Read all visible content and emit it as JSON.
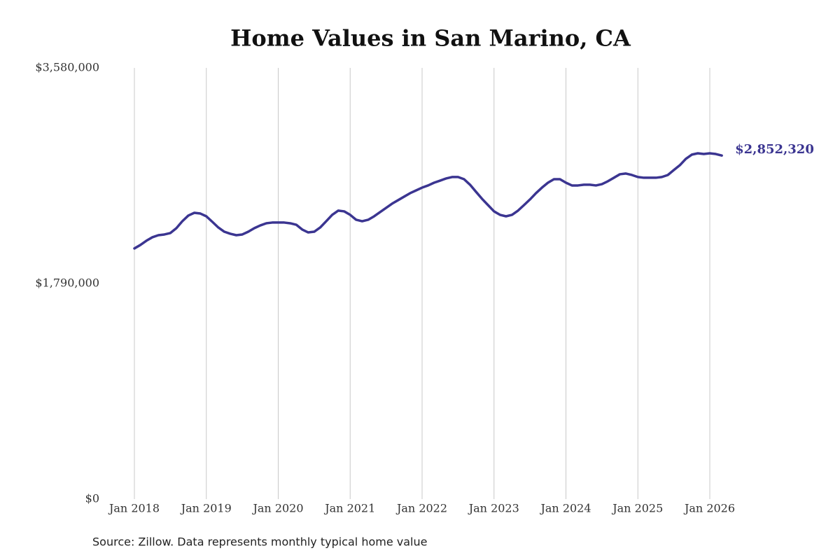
{
  "chart_data": {
    "type": "line",
    "title": "Home Values in San Marino, CA",
    "source": "Source: Zillow. Data represents monthly typical home value",
    "x": [
      "2018-01",
      "2018-02",
      "2018-03",
      "2018-04",
      "2018-05",
      "2018-06",
      "2018-07",
      "2018-08",
      "2018-09",
      "2018-10",
      "2018-11",
      "2018-12",
      "2019-01",
      "2019-02",
      "2019-03",
      "2019-04",
      "2019-05",
      "2019-06",
      "2019-07",
      "2019-08",
      "2019-09",
      "2019-10",
      "2019-11",
      "2019-12",
      "2020-01",
      "2020-02",
      "2020-03",
      "2020-04",
      "2020-05",
      "2020-06",
      "2020-07",
      "2020-08",
      "2020-09",
      "2020-10",
      "2020-11",
      "2020-12",
      "2021-01",
      "2021-02",
      "2021-03",
      "2021-04",
      "2021-05",
      "2021-06",
      "2021-07",
      "2021-08",
      "2021-09",
      "2021-10",
      "2021-11",
      "2021-12",
      "2022-01",
      "2022-02",
      "2022-03",
      "2022-04",
      "2022-05",
      "2022-06",
      "2022-07",
      "2022-08",
      "2022-09",
      "2022-10",
      "2022-11",
      "2022-12",
      "2023-01",
      "2023-02",
      "2023-03",
      "2023-04",
      "2023-05",
      "2023-06",
      "2023-07",
      "2023-08",
      "2023-09",
      "2023-10",
      "2023-11",
      "2023-12",
      "2024-01",
      "2024-02",
      "2024-03",
      "2024-04",
      "2024-05",
      "2024-06",
      "2024-07",
      "2024-08",
      "2024-09",
      "2024-10",
      "2024-11",
      "2024-12",
      "2025-01",
      "2025-02",
      "2025-03",
      "2025-04",
      "2025-05",
      "2025-06",
      "2025-07",
      "2025-08",
      "2025-09",
      "2025-10",
      "2025-11",
      "2025-12",
      "2026-01",
      "2026-02",
      "2026-03"
    ],
    "values": [
      2081000,
      2110000,
      2145000,
      2174000,
      2191000,
      2197000,
      2209000,
      2249000,
      2307000,
      2354000,
      2377000,
      2371000,
      2348000,
      2302000,
      2255000,
      2220000,
      2203000,
      2191000,
      2197000,
      2220000,
      2249000,
      2272000,
      2290000,
      2296000,
      2296000,
      2296000,
      2290000,
      2278000,
      2238000,
      2214000,
      2220000,
      2255000,
      2307000,
      2360000,
      2395000,
      2389000,
      2360000,
      2319000,
      2307000,
      2319000,
      2348000,
      2383000,
      2418000,
      2453000,
      2482000,
      2511000,
      2540000,
      2563000,
      2586000,
      2604000,
      2627000,
      2644000,
      2662000,
      2674000,
      2674000,
      2656000,
      2610000,
      2551000,
      2493000,
      2441000,
      2389000,
      2360000,
      2348000,
      2360000,
      2395000,
      2441000,
      2488000,
      2540000,
      2586000,
      2627000,
      2656000,
      2656000,
      2627000,
      2604000,
      2604000,
      2610000,
      2610000,
      2604000,
      2615000,
      2639000,
      2668000,
      2697000,
      2703000,
      2691000,
      2674000,
      2668000,
      2668000,
      2668000,
      2674000,
      2691000,
      2732000,
      2772000,
      2825000,
      2860000,
      2871000,
      2865000,
      2871000,
      2865000,
      2852320
    ],
    "value_labels": [
      null,
      null,
      null,
      null,
      null,
      null,
      null,
      null,
      null,
      null,
      null,
      null,
      null,
      null,
      null,
      null,
      null,
      null,
      null,
      null,
      null,
      null,
      null,
      null,
      null,
      null,
      null,
      null,
      null,
      null,
      null,
      null,
      null,
      null,
      null,
      null,
      null,
      null,
      null,
      null,
      null,
      null,
      null,
      null,
      null,
      null,
      null,
      null,
      null,
      null,
      null,
      null,
      null,
      null,
      null,
      null,
      null,
      null,
      null,
      null,
      null,
      null,
      null,
      null,
      null,
      null,
      null,
      null,
      null,
      null,
      null,
      null,
      null,
      null,
      null,
      null,
      null,
      null,
      null,
      null,
      null,
      null,
      null,
      null,
      null,
      null,
      null,
      null,
      null,
      null,
      null,
      null,
      null,
      null,
      null,
      null,
      null,
      null,
      "$2,852,320"
    ],
    "color": "#3b3591",
    "ylim": [
      0,
      3580000
    ],
    "yticks": [
      {
        "value": 0,
        "label": "$0"
      },
      {
        "value": 1790000,
        "label": "$1,790,000"
      },
      {
        "value": 3580000,
        "label": "$3,580,000"
      }
    ],
    "xticks": [
      {
        "value": "2018-01",
        "label": "Jan 2018"
      },
      {
        "value": "2019-01",
        "label": "Jan 2019"
      },
      {
        "value": "2020-01",
        "label": "Jan 2020"
      },
      {
        "value": "2021-01",
        "label": "Jan 2021"
      },
      {
        "value": "2022-01",
        "label": "Jan 2022"
      },
      {
        "value": "2023-01",
        "label": "Jan 2023"
      },
      {
        "value": "2024-01",
        "label": "Jan 2024"
      },
      {
        "value": "2025-01",
        "label": "Jan 2025"
      },
      {
        "value": "2026-01",
        "label": "Jan 2026"
      }
    ],
    "grid": "x"
  }
}
